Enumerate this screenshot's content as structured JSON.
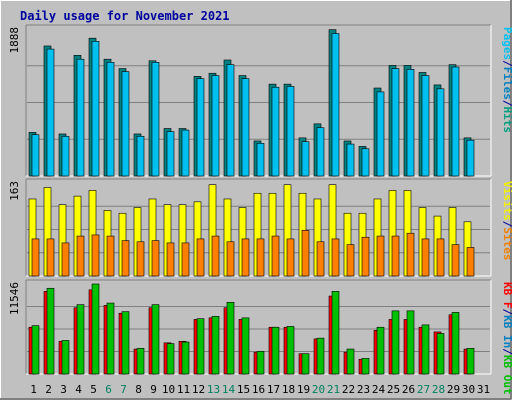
{
  "chart_data": {
    "type": "bar",
    "title": "Daily usage for November 2021",
    "categories": [
      "1",
      "2",
      "3",
      "4",
      "5",
      "6",
      "7",
      "8",
      "9",
      "10",
      "11",
      "12",
      "13",
      "14",
      "15",
      "16",
      "17",
      "18",
      "19",
      "20",
      "21",
      "22",
      "23",
      "24",
      "25",
      "26",
      "27",
      "28",
      "29",
      "30",
      "31"
    ],
    "weekend_days": [
      "6",
      "7",
      "13",
      "14",
      "20",
      "21",
      "27",
      "28"
    ],
    "panels": [
      {
        "id": "hits",
        "ymax_label": "1888",
        "ymax": 1888,
        "right_labels": [
          {
            "text": "Pages",
            "color": "#00c0f0"
          },
          {
            "text": "/",
            "color": "#0000a0"
          },
          {
            "text": "Files",
            "color": "#0080c0"
          },
          {
            "text": "/",
            "color": "#0000a0"
          },
          {
            "text": "Hits",
            "color": "#00a080"
          }
        ],
        "series": [
          {
            "name": "Hits",
            "color": "#008080",
            "values": [
              560,
              1670,
              540,
              1550,
              1770,
              1500,
              1380,
              540,
              1480,
              610,
              610,
              1280,
              1320,
              1490,
              1290,
              450,
              1180,
              1180,
              490,
              670,
              1880,
              450,
              380,
              1130,
              1420,
              1420,
              1330,
              1170,
              1430,
              490,
              null
            ]
          },
          {
            "name": "Files",
            "color": "#00c0f0",
            "values": [
              530,
              1630,
              510,
              1500,
              1730,
              1460,
              1340,
              510,
              1460,
              570,
              590,
              1250,
              1290,
              1430,
              1250,
              420,
              1140,
              1150,
              440,
              620,
              1830,
              410,
              350,
              1080,
              1380,
              1370,
              1290,
              1120,
              1400,
              460,
              null
            ]
          }
        ]
      },
      {
        "id": "visits",
        "ymax_label": "163",
        "ymax": 163,
        "right_labels": [
          {
            "text": "Visits",
            "color": "#f0f000"
          },
          {
            "text": "/",
            "color": "#0000a0"
          },
          {
            "text": "Sites",
            "color": "#f08000"
          }
        ],
        "series": [
          {
            "name": "Visits",
            "color": "#ffff00",
            "values": [
              135,
              155,
              125,
              140,
              150,
              115,
              110,
              120,
              135,
              125,
              125,
              130,
              160,
              135,
              120,
              145,
              145,
              160,
              145,
              135,
              160,
              110,
              110,
              135,
              150,
              150,
              120,
              105,
              120,
              95,
              null
            ]
          },
          {
            "name": "Sites",
            "color": "#ff8000",
            "values": [
              65,
              65,
              58,
              70,
              72,
              70,
              62,
              60,
              62,
              58,
              58,
              65,
              70,
              60,
              65,
              65,
              70,
              65,
              80,
              60,
              65,
              55,
              68,
              70,
              70,
              75,
              65,
              65,
              55,
              50,
              null
            ]
          }
        ]
      },
      {
        "id": "kbytes",
        "ymax_label": "11546",
        "ymax": 11546,
        "right_labels": [
          {
            "text": "KB F",
            "color": "#ff0000"
          },
          {
            "text": "/",
            "color": "#0000a0"
          },
          {
            "text": "KB In",
            "color": "#0080c0"
          },
          {
            "text": "/",
            "color": "#0000a0"
          },
          {
            "text": "KB Out",
            "color": "#00c000"
          }
        ],
        "series": [
          {
            "name": "KB F",
            "color": "#ff0000",
            "values": [
              6000,
              10600,
              4200,
              8500,
              10800,
              8800,
              7800,
              3200,
              8500,
              4000,
              4200,
              7000,
              7200,
              8500,
              7000,
              2800,
              6000,
              6000,
              2600,
              4500,
              10000,
              2800,
              1900,
              5600,
              7000,
              7000,
              6000,
              5400,
              7600,
              3200,
              null
            ]
          },
          {
            "name": "KB Out",
            "color": "#00c000",
            "values": [
              6200,
              11000,
              4300,
              8900,
              11546,
              9100,
              8000,
              3300,
              8900,
              3900,
              4100,
              7100,
              7400,
              9200,
              7200,
              2900,
              6000,
              6100,
              2600,
              4600,
              10600,
              3200,
              2000,
              6000,
              8100,
              8100,
              6300,
              5200,
              7900,
              3300,
              null
            ]
          }
        ]
      }
    ]
  }
}
